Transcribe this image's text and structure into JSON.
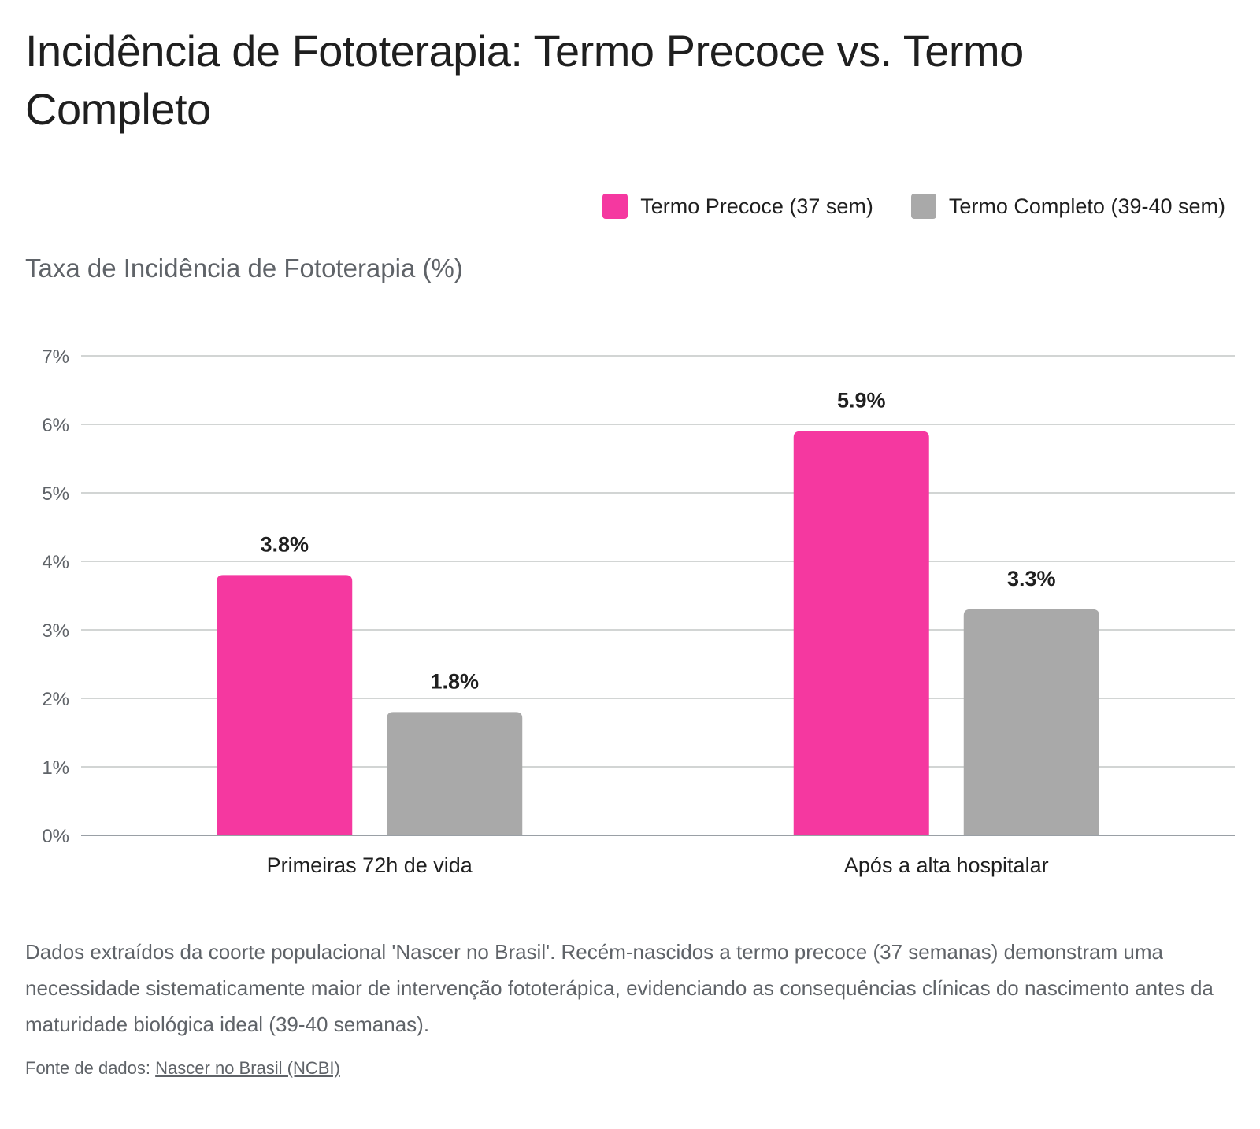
{
  "page": {
    "title": "Incidência de Fototerapia: Termo Precoce vs. Termo Completo",
    "caption": "Dados extraídos da coorte populacional 'Nascer no Brasil'. Recém-nascidos a termo precoce (37 semanas) demonstram uma necessidade sistematicamente maior de intervenção fototerápica, evidenciando as consequências clínicas do nascimento antes da maturidade biológica ideal (39-40 semanas).",
    "source_label": "Fonte de dados:",
    "source_link": "Nascer no Brasil (NCBI)"
  },
  "chart_data": {
    "type": "bar",
    "title": "Incidência de Fototerapia: Termo Precoce vs. Termo Completo",
    "xlabel": "",
    "ylabel": "Taxa de Incidência de Fototerapia (%)",
    "categories": [
      "Primeiras 72h de vida",
      "Após a alta hospitalar"
    ],
    "series": [
      {
        "name": "Termo Precoce (37 sem)",
        "color": "#f538a0",
        "values": [
          3.8,
          5.9
        ],
        "labels": [
          "3.8%",
          "5.9%"
        ]
      },
      {
        "name": "Termo Completo (39-40 sem)",
        "color": "#a9a9a9",
        "values": [
          1.8,
          3.3
        ],
        "labels": [
          "1.8%",
          "3.3%"
        ]
      }
    ],
    "ylim": [
      0,
      7
    ],
    "yticks": [
      0,
      1,
      2,
      3,
      4,
      5,
      6,
      7
    ],
    "ytick_labels": [
      "0%",
      "1%",
      "2%",
      "3%",
      "4%",
      "5%",
      "6%",
      "7%"
    ],
    "grid": true,
    "legend_position": "top-right"
  }
}
